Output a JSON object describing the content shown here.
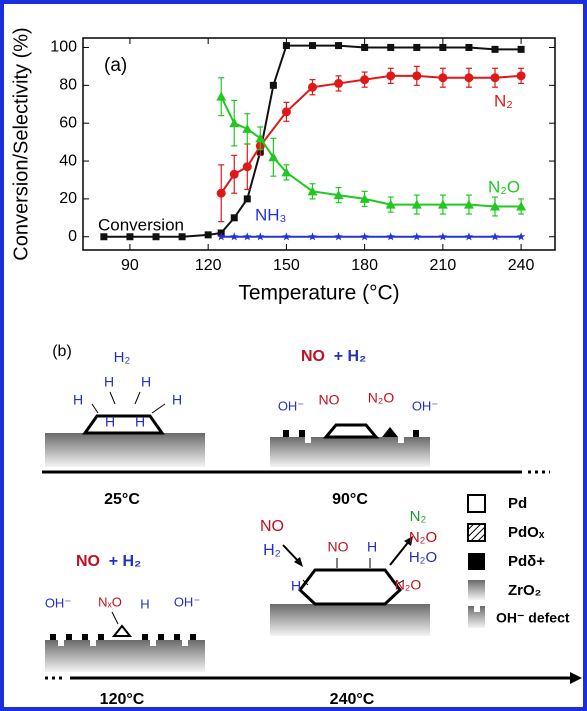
{
  "chart_data": {
    "type": "line",
    "label": "(a)",
    "xlabel": "Temperature (°C)",
    "ylabel": "Conversion/Selectivity (%)",
    "xlim": [
      72,
      253
    ],
    "xticks": [
      90,
      120,
      150,
      180,
      210,
      240
    ],
    "ylim": [
      -7,
      105
    ],
    "yticks": [
      0,
      20,
      40,
      60,
      80,
      100
    ],
    "series": [
      {
        "name": "Conversion",
        "color": "#111111",
        "marker": "square",
        "x": [
          80,
          90,
          100,
          110,
          120,
          125,
          130,
          135,
          140,
          145,
          150,
          160,
          170,
          180,
          190,
          200,
          210,
          220,
          230,
          240
        ],
        "values": [
          0,
          0,
          0,
          0,
          1,
          2,
          10,
          20,
          45,
          80,
          101,
          101,
          101,
          100,
          100,
          100,
          100,
          100,
          99,
          99
        ]
      },
      {
        "name": "N₂",
        "color": "#e01818",
        "marker": "circle",
        "x": [
          125,
          130,
          135,
          140,
          150,
          160,
          170,
          180,
          190,
          200,
          210,
          220,
          230,
          240
        ],
        "values": [
          23,
          33,
          37,
          48,
          66,
          79,
          81,
          83,
          85,
          85,
          84,
          84,
          84,
          85
        ],
        "errors": [
          15,
          10,
          12,
          5,
          5,
          4,
          4,
          4,
          4,
          5,
          5,
          5,
          5,
          4
        ]
      },
      {
        "name": "N₂O",
        "color": "#22c822",
        "marker": "triangle",
        "x": [
          125,
          130,
          135,
          140,
          145,
          150,
          160,
          170,
          180,
          190,
          200,
          210,
          220,
          230,
          240
        ],
        "values": [
          74,
          60,
          57,
          52,
          42,
          34,
          24,
          22,
          20,
          17,
          17,
          17,
          17,
          16,
          16
        ],
        "errors": [
          10,
          12,
          8,
          6,
          10,
          4,
          4,
          4,
          4,
          4,
          5,
          5,
          5,
          5,
          4
        ]
      },
      {
        "name": "NH₃",
        "color": "#2233dd",
        "marker": "star",
        "x": [
          125,
          130,
          135,
          140,
          150,
          160,
          170,
          180,
          190,
          200,
          210,
          220,
          230,
          240
        ],
        "values": [
          0,
          0,
          0,
          0,
          0,
          0,
          0,
          0,
          0,
          0,
          0,
          0,
          0,
          0
        ]
      }
    ]
  },
  "diagram": {
    "labels": [
      "(b)",
      "H₂",
      "H",
      "H",
      "H",
      "H",
      "H",
      "H",
      "NO",
      "+ H₂",
      "OH⁻",
      "NO",
      "N₂O",
      "OH⁻",
      "25°C",
      "90°C",
      "NO",
      "+ H₂",
      "OH⁻",
      "NₓO",
      "H",
      "OH⁻",
      "120°C",
      "NO",
      "H₂",
      "NO",
      "H",
      "N₂O",
      "H",
      "N₂",
      "N₂O",
      "H₂O",
      "240°C",
      "Pd",
      "PdOₓ",
      "Pdδ+",
      "ZrO₂",
      "OH⁻ defect"
    ]
  }
}
